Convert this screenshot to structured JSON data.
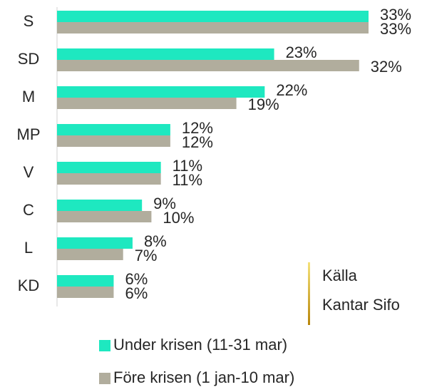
{
  "chart_data": {
    "type": "bar",
    "orientation": "horizontal",
    "categories": [
      "S",
      "SD",
      "M",
      "MP",
      "V",
      "C",
      "L",
      "KD"
    ],
    "series": [
      {
        "name": "Under krisen (11-31 mar)",
        "color": "#1ee8c0",
        "values": [
          33,
          23,
          22,
          12,
          11,
          9,
          8,
          6
        ],
        "value_labels": [
          "33%",
          "23%",
          "22%",
          "12%",
          "11%",
          "9%",
          "8%",
          "6%"
        ]
      },
      {
        "name": "Före krisen (1 jan-10 mar)",
        "color": "#b1ad9d",
        "values": [
          33,
          32,
          19,
          12,
          11,
          10,
          7,
          6
        ],
        "value_labels": [
          "33%",
          "32%",
          "19%",
          "12%",
          "11%",
          "10%",
          "7%",
          "6%"
        ]
      }
    ],
    "annotations": [
      "Källa",
      "Kantar Sifo"
    ]
  }
}
